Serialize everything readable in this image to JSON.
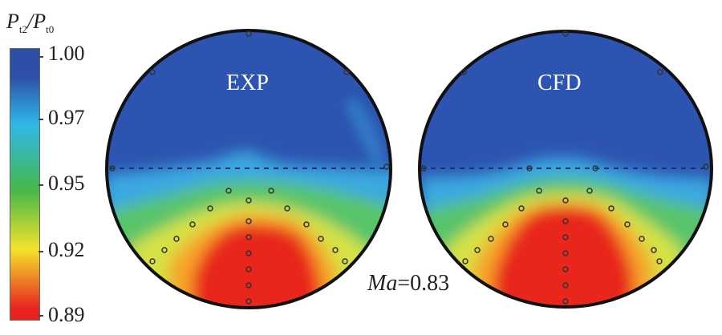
{
  "legend": {
    "title": {
      "P1": "P",
      "s1": "t2",
      "slash": "/",
      "P2": "P",
      "s2": "t0"
    },
    "ticks": [
      "1.00",
      "0.97",
      "0.95",
      "0.92",
      "0.89"
    ],
    "colors": [
      "#2d4fa8",
      "#2fb8e8",
      "#46b84a",
      "#f2e42a",
      "#e8231e"
    ]
  },
  "plots": [
    {
      "label": "EXP"
    },
    {
      "label": "CFD"
    }
  ],
  "annotation": {
    "ma": "Ma",
    "value": "=0.83"
  }
}
